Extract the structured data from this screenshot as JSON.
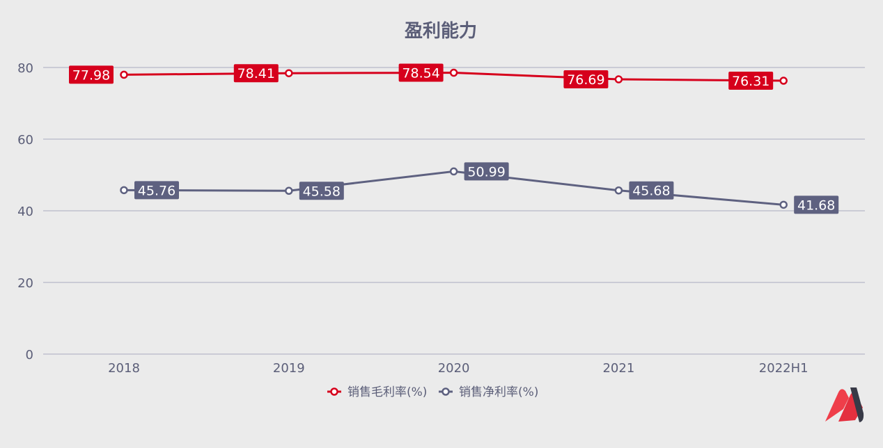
{
  "chart_data": {
    "type": "line",
    "title": "盈利能力",
    "categories": [
      "2018",
      "2019",
      "2020",
      "2021",
      "2022H1"
    ],
    "ylim": [
      0,
      80
    ],
    "yticks": [
      0,
      20,
      40,
      60,
      80
    ],
    "grid": true,
    "legend_position": "bottom",
    "series": [
      {
        "name": "销售毛利率(%)",
        "values": [
          77.98,
          78.41,
          78.54,
          76.69,
          76.31
        ],
        "color": "#d6001c",
        "label_side": "left"
      },
      {
        "name": "销售净利率(%)",
        "values": [
          45.76,
          45.58,
          50.99,
          45.68,
          41.68
        ],
        "color": "#5e6180",
        "label_side": "right"
      }
    ]
  },
  "colors": {
    "background": "#ebebeb",
    "grid": "#b6b8c8",
    "axis_text": "#5b5e78",
    "title": "#5b5e78"
  },
  "logo": {
    "icon": "brand-m-logo"
  }
}
